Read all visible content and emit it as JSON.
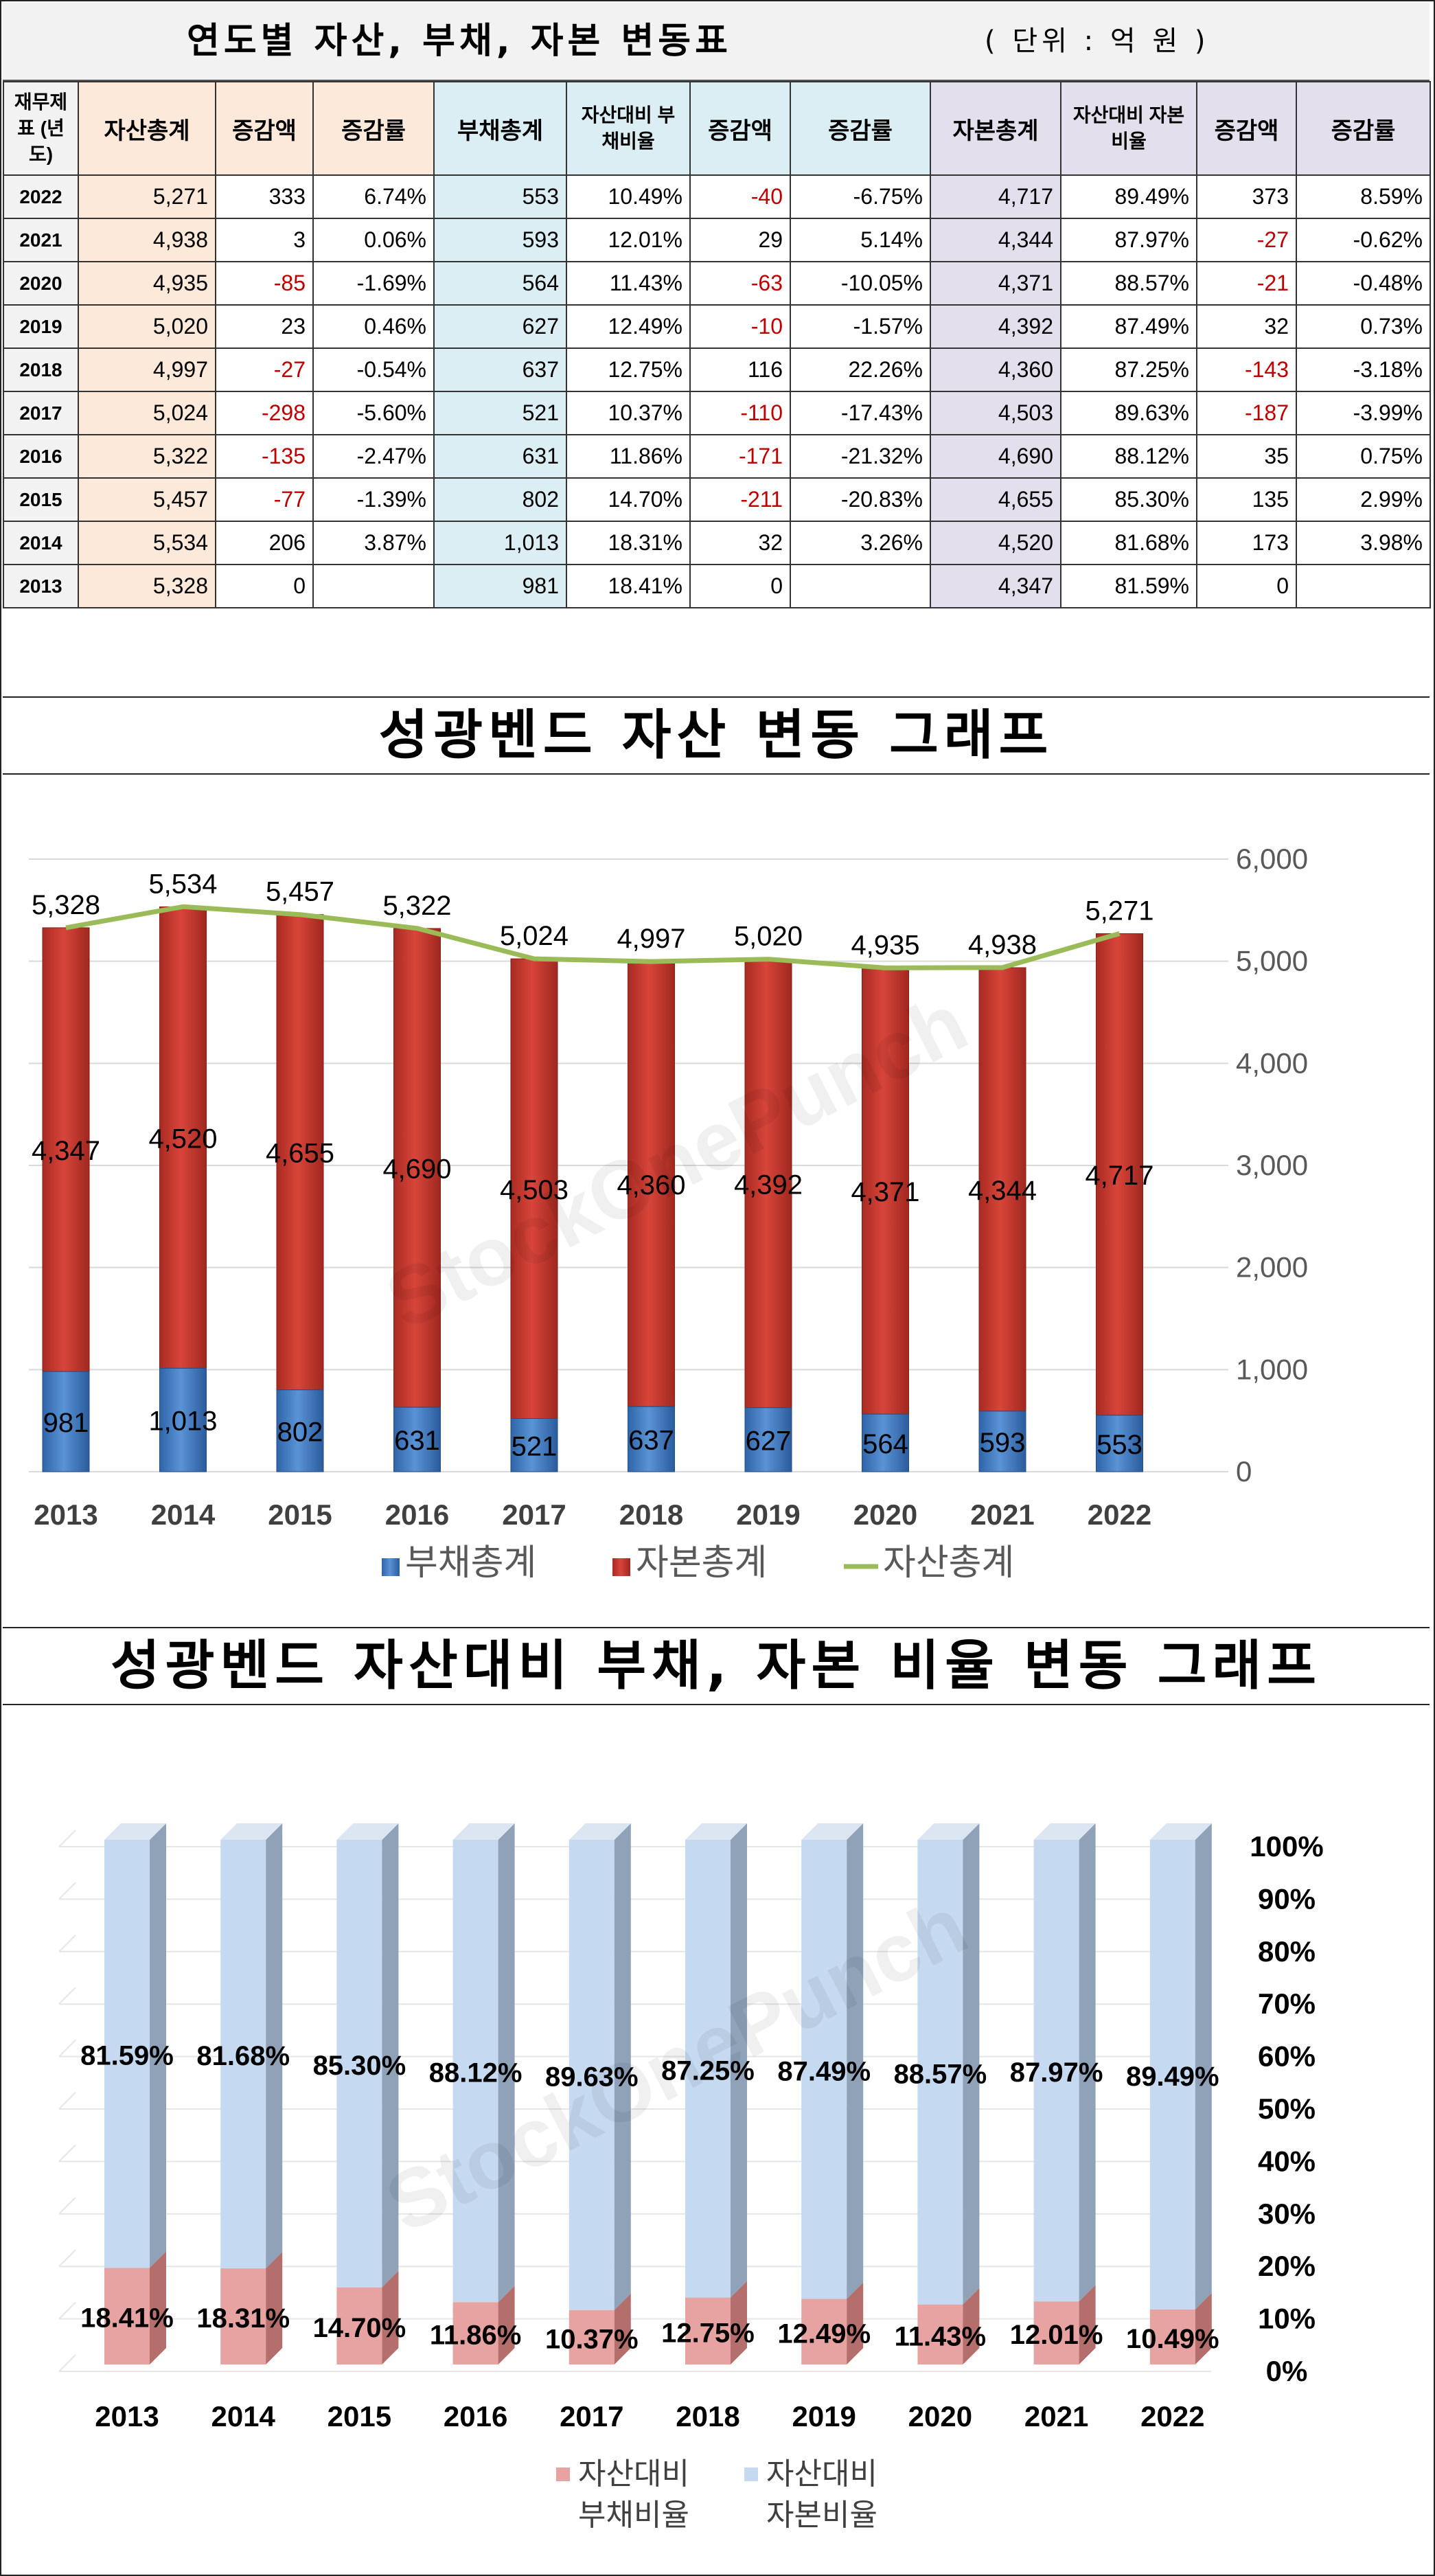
{
  "header": {
    "title": "연도별 자산, 부채, 자본 변동표",
    "unit": "( 단위 : 억 원 )"
  },
  "table": {
    "columns": [
      "재무제표 (년도)",
      "자산총계",
      "증감액",
      "증감률",
      "부채총계",
      "자산대비 부채비율",
      "증감액",
      "증감률",
      "자본총계",
      "자산대비 자본비율",
      "증감액",
      "증감률"
    ],
    "rows": [
      [
        "2022",
        "5,271",
        "333",
        "6.74%",
        "553",
        "10.49%",
        "-40",
        "-6.75%",
        "4,717",
        "89.49%",
        "373",
        "8.59%"
      ],
      [
        "2021",
        "4,938",
        "3",
        "0.06%",
        "593",
        "12.01%",
        "29",
        "5.14%",
        "4,344",
        "87.97%",
        "-27",
        "-0.62%"
      ],
      [
        "2020",
        "4,935",
        "-85",
        "-1.69%",
        "564",
        "11.43%",
        "-63",
        "-10.05%",
        "4,371",
        "88.57%",
        "-21",
        "-0.48%"
      ],
      [
        "2019",
        "5,020",
        "23",
        "0.46%",
        "627",
        "12.49%",
        "-10",
        "-1.57%",
        "4,392",
        "87.49%",
        "32",
        "0.73%"
      ],
      [
        "2018",
        "4,997",
        "-27",
        "-0.54%",
        "637",
        "12.75%",
        "116",
        "22.26%",
        "4,360",
        "87.25%",
        "-143",
        "-3.18%"
      ],
      [
        "2017",
        "5,024",
        "-298",
        "-5.60%",
        "521",
        "10.37%",
        "-110",
        "-17.43%",
        "4,503",
        "89.63%",
        "-187",
        "-3.99%"
      ],
      [
        "2016",
        "5,322",
        "-135",
        "-2.47%",
        "631",
        "11.86%",
        "-171",
        "-21.32%",
        "4,690",
        "88.12%",
        "35",
        "0.75%"
      ],
      [
        "2015",
        "5,457",
        "-77",
        "-1.39%",
        "802",
        "14.70%",
        "-211",
        "-20.83%",
        "4,655",
        "85.30%",
        "135",
        "2.99%"
      ],
      [
        "2014",
        "5,534",
        "206",
        "3.87%",
        "1,013",
        "18.31%",
        "32",
        "3.26%",
        "4,520",
        "81.68%",
        "173",
        "3.98%"
      ],
      [
        "2013",
        "5,328",
        "0",
        "",
        "981",
        "18.41%",
        "0",
        "",
        "4,347",
        "81.59%",
        "0",
        ""
      ]
    ]
  },
  "chart1_title": "성광벤드 자산 변동 그래프",
  "chart2_title": "성광벤드 자산대비 부채, 자본 비율 변동 그래프",
  "watermark": "StockOnePunch",
  "colors": {
    "debt": "#4a7ebb",
    "equity": "#c0392b",
    "assets_line": "#9bbb59",
    "debt_ratio": "#e6a3a1",
    "equity_ratio": "#c5d9f1",
    "negative": "#c00000"
  },
  "chart_data": [
    {
      "type": "bar",
      "stacked": true,
      "title": "성광벤드 자산 변동 그래프",
      "categories": [
        "2013",
        "2014",
        "2015",
        "2016",
        "2017",
        "2018",
        "2019",
        "2020",
        "2021",
        "2022"
      ],
      "series": [
        {
          "name": "부채총계",
          "type": "bar",
          "values": [
            981,
            1013,
            802,
            631,
            521,
            637,
            627,
            564,
            593,
            553
          ]
        },
        {
          "name": "자본총계",
          "type": "bar",
          "values": [
            4347,
            4520,
            4655,
            4690,
            4503,
            4360,
            4392,
            4371,
            4344,
            4717
          ]
        },
        {
          "name": "자산총계",
          "type": "line",
          "values": [
            5328,
            5534,
            5457,
            5322,
            5024,
            4997,
            5020,
            4935,
            4938,
            5271
          ]
        }
      ],
      "ylim": [
        0,
        6000
      ],
      "yticks": [
        "0",
        "1,000",
        "2,000",
        "3,000",
        "4,000",
        "5,000",
        "6,000"
      ],
      "legend": "bottom"
    },
    {
      "type": "bar",
      "stacked": true,
      "percent": true,
      "title": "성광벤드 자산대비 부채, 자본 비율 변동 그래프",
      "categories": [
        "2013",
        "2014",
        "2015",
        "2016",
        "2017",
        "2018",
        "2019",
        "2020",
        "2021",
        "2022"
      ],
      "series": [
        {
          "name": "자산대비 부채비율",
          "values": [
            18.41,
            18.31,
            14.7,
            11.86,
            10.37,
            12.75,
            12.49,
            11.43,
            12.01,
            10.49
          ]
        },
        {
          "name": "자산대비 자본비율",
          "values": [
            81.59,
            81.68,
            85.3,
            88.12,
            89.63,
            87.25,
            87.49,
            88.57,
            87.97,
            89.49
          ]
        }
      ],
      "ylim": [
        0,
        100
      ],
      "yticks": [
        "0%",
        "10%",
        "20%",
        "30%",
        "40%",
        "50%",
        "60%",
        "70%",
        "80%",
        "90%",
        "100%"
      ],
      "legend": "bottom"
    }
  ]
}
